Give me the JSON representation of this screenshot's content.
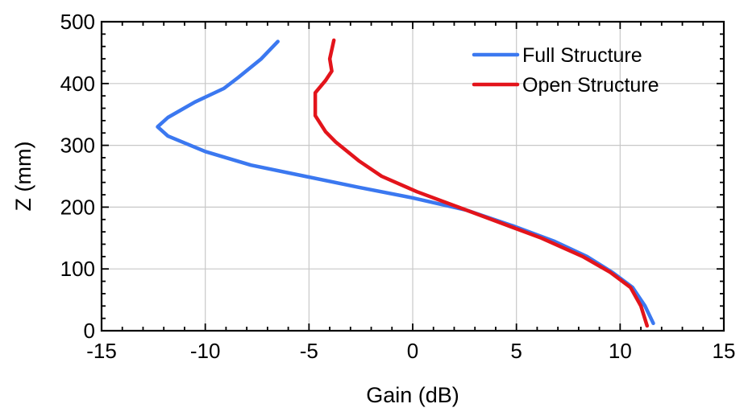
{
  "chart_data": {
    "type": "line",
    "title": "",
    "xlabel": "Gain (dB)",
    "ylabel": "Z (mm)",
    "xlim": [
      -15,
      15
    ],
    "ylim": [
      0,
      500
    ],
    "xticks": [
      -15,
      -10,
      -5,
      0,
      5,
      10,
      15
    ],
    "yticks": [
      0,
      100,
      200,
      300,
      400,
      500
    ],
    "grid": true,
    "legend_position": "top-right",
    "series": [
      {
        "name": "Full Structure",
        "color": "#3b78f0",
        "points": [
          [
            11.6,
            12
          ],
          [
            11.2,
            40
          ],
          [
            10.6,
            70
          ],
          [
            9.6,
            95
          ],
          [
            8.4,
            120
          ],
          [
            6.8,
            145
          ],
          [
            4.8,
            170
          ],
          [
            2.6,
            195
          ],
          [
            0,
            215
          ],
          [
            -2.6,
            232
          ],
          [
            -5.2,
            250
          ],
          [
            -7.8,
            268
          ],
          [
            -10,
            290
          ],
          [
            -11.8,
            315
          ],
          [
            -12.3,
            330
          ],
          [
            -11.8,
            345
          ],
          [
            -10.5,
            370
          ],
          [
            -9.1,
            392
          ],
          [
            -8.4,
            410
          ],
          [
            -7.3,
            440
          ],
          [
            -6.5,
            468
          ]
        ]
      },
      {
        "name": "Open Structure",
        "color": "#e3141b",
        "points": [
          [
            11.3,
            8
          ],
          [
            11.0,
            40
          ],
          [
            10.5,
            70
          ],
          [
            9.5,
            95
          ],
          [
            8.2,
            120
          ],
          [
            6.2,
            150
          ],
          [
            4.2,
            175
          ],
          [
            2.2,
            200
          ],
          [
            0.2,
            225
          ],
          [
            -1.5,
            250
          ],
          [
            -2.6,
            275
          ],
          [
            -3.7,
            305
          ],
          [
            -4.2,
            322
          ],
          [
            -4.7,
            348
          ],
          [
            -4.7,
            365
          ],
          [
            -4.7,
            385
          ],
          [
            -4.2,
            405
          ],
          [
            -3.9,
            420
          ],
          [
            -4.0,
            440
          ],
          [
            -3.8,
            470
          ]
        ]
      }
    ]
  }
}
